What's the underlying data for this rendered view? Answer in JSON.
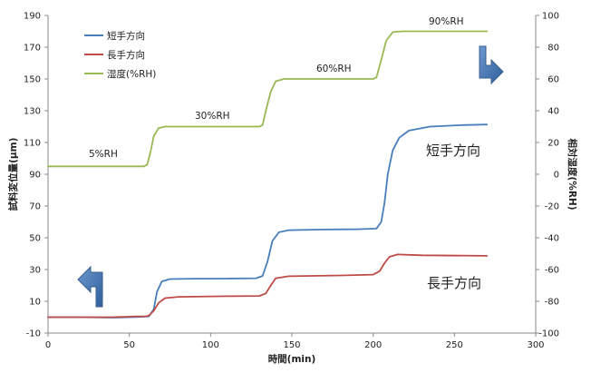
{
  "chart_data": {
    "type": "line",
    "x_axis": {
      "label": "時間(min)",
      "range": [
        0,
        300
      ],
      "ticks": [
        0,
        50,
        100,
        150,
        200,
        250,
        300
      ]
    },
    "y_left": {
      "label": "試料変位量(μm)",
      "range": [
        -10,
        190
      ],
      "ticks": [
        -10,
        10,
        30,
        50,
        70,
        90,
        110,
        130,
        150,
        170,
        190
      ]
    },
    "y_right": {
      "label": "相対湿度(%RH)",
      "range": [
        -100,
        100
      ],
      "ticks": [
        -100,
        -80,
        -60,
        -40,
        -20,
        0,
        20,
        40,
        60,
        80,
        100
      ]
    },
    "grid": false,
    "legend_placement": "top-left",
    "series": [
      {
        "name": "短手方向",
        "color": "#4a7ebb",
        "axis": "left",
        "points": [
          [
            0,
            0
          ],
          [
            20,
            0
          ],
          [
            40,
            -0.3
          ],
          [
            58,
            0.2
          ],
          [
            62,
            0.5
          ],
          [
            65,
            5
          ],
          [
            67,
            16
          ],
          [
            70,
            22.5
          ],
          [
            75,
            24
          ],
          [
            90,
            24.2
          ],
          [
            110,
            24.3
          ],
          [
            128,
            24.5
          ],
          [
            132,
            26
          ],
          [
            135,
            35
          ],
          [
            138,
            48
          ],
          [
            142,
            53.5
          ],
          [
            148,
            54.8
          ],
          [
            170,
            55.2
          ],
          [
            190,
            55.4
          ],
          [
            202,
            55.8
          ],
          [
            205,
            60
          ],
          [
            207,
            72
          ],
          [
            209,
            90
          ],
          [
            212,
            105
          ],
          [
            216,
            113
          ],
          [
            222,
            117.5
          ],
          [
            235,
            120
          ],
          [
            255,
            121
          ],
          [
            270,
            121.3
          ]
        ]
      },
      {
        "name": "長手方向",
        "color": "#be4b48",
        "axis": "left",
        "points": [
          [
            0,
            0
          ],
          [
            40,
            0
          ],
          [
            55,
            0.5
          ],
          [
            60,
            0.5
          ],
          [
            62,
            1
          ],
          [
            65,
            4
          ],
          [
            68,
            9
          ],
          [
            72,
            12
          ],
          [
            80,
            12.8
          ],
          [
            110,
            13.2
          ],
          [
            130,
            13.4
          ],
          [
            134,
            15
          ],
          [
            137,
            20
          ],
          [
            140,
            24.5
          ],
          [
            148,
            25.8
          ],
          [
            180,
            26.3
          ],
          [
            200,
            26.8
          ],
          [
            204,
            29
          ],
          [
            207,
            34
          ],
          [
            210,
            38
          ],
          [
            215,
            39.5
          ],
          [
            230,
            39
          ],
          [
            270,
            38.6
          ]
        ]
      },
      {
        "name": "湿度(%RH)",
        "color": "#98b954",
        "axis": "right",
        "points": [
          [
            0,
            5
          ],
          [
            59,
            5
          ],
          [
            61,
            6
          ],
          [
            63,
            14
          ],
          [
            65,
            24
          ],
          [
            68,
            29
          ],
          [
            72,
            30
          ],
          [
            130,
            30
          ],
          [
            132,
            31
          ],
          [
            134,
            40
          ],
          [
            137,
            52
          ],
          [
            140,
            58.5
          ],
          [
            145,
            60
          ],
          [
            200,
            60
          ],
          [
            202,
            61
          ],
          [
            205,
            72
          ],
          [
            208,
            84
          ],
          [
            212,
            89.5
          ],
          [
            218,
            90
          ],
          [
            270,
            90
          ]
        ]
      }
    ],
    "annotations": {
      "rh_5": "5%RH",
      "rh_30": "30%RH",
      "rh_60": "60%RH",
      "rh_90": "90%RH",
      "short_label": "短手方向",
      "long_label": "長手方向"
    }
  }
}
